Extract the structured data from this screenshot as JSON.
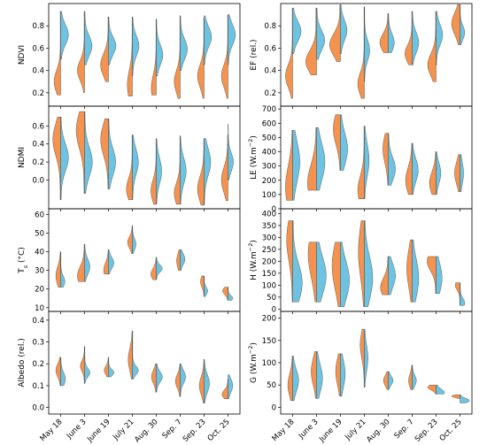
{
  "colors": {
    "left": "#F4934F",
    "right": "#6EC3E2"
  },
  "dates": [
    "May 18",
    "June 3",
    "June 19",
    "July 21",
    "Aug. 30",
    "Sep. 7",
    "Sep. 23",
    "Oct. 25"
  ],
  "chart_data": [
    {
      "type": "split-violin",
      "panel": "NDVI",
      "col": 0,
      "row": 0,
      "ylabel_parts": [
        {
          "t": "NDVI"
        }
      ],
      "yticks": [
        0.2,
        0.4,
        0.6,
        0.8
      ],
      "ylim": [
        0.08,
        1.0
      ],
      "left": [
        [
          0.93,
          0.18,
          0.3,
          0.55,
          0.1
        ],
        [
          0.93,
          0.2,
          0.4,
          0.6,
          0.09
        ],
        [
          0.88,
          0.3,
          0.45,
          0.66,
          0.1
        ],
        [
          0.88,
          0.17,
          0.27,
          0.42,
          0.13
        ],
        [
          0.86,
          0.18,
          0.24,
          0.42,
          0.12
        ],
        [
          0.89,
          0.15,
          0.3,
          0.5,
          0.1
        ],
        [
          0.87,
          0.15,
          0.35,
          0.55,
          0.1
        ],
        [
          0.9,
          0.15,
          0.35,
          0.55,
          0.1
        ]
      ],
      "right": [
        [
          0.93,
          0.5,
          0.72,
          0.65,
          0.09
        ],
        [
          0.93,
          0.45,
          0.62,
          0.62,
          0.09
        ],
        [
          0.88,
          0.45,
          0.62,
          0.62,
          0.08
        ],
        [
          0.88,
          0.35,
          0.62,
          0.55,
          0.09
        ],
        [
          0.86,
          0.35,
          0.54,
          0.55,
          0.09
        ],
        [
          0.89,
          0.4,
          0.59,
          0.6,
          0.09
        ],
        [
          0.89,
          0.45,
          0.7,
          0.62,
          0.09
        ],
        [
          0.9,
          0.45,
          0.72,
          0.62,
          0.09
        ]
      ]
    },
    {
      "type": "split-violin",
      "panel": "EF",
      "col": 1,
      "row": 0,
      "ylabel_parts": [
        {
          "t": "EF (rel.)"
        }
      ],
      "yticks": [
        0.2,
        0.4,
        0.6,
        0.8
      ],
      "ylim": [
        0.08,
        1.0
      ],
      "left": [
        [
          0.96,
          0.15,
          0.35,
          0.6,
          0.1
        ],
        [
          0.96,
          0.36,
          0.48,
          0.9,
          0.1
        ],
        [
          0.99,
          0.48,
          0.63,
          0.9,
          0.1
        ],
        [
          0.97,
          0.15,
          0.28,
          0.55,
          0.1
        ],
        [
          0.91,
          0.56,
          0.65,
          0.7,
          0.08
        ],
        [
          0.93,
          0.45,
          0.55,
          0.6,
          0.08
        ],
        [
          0.93,
          0.3,
          0.45,
          0.7,
          0.1
        ],
        [
          0.99,
          0.63,
          0.82,
          0.7,
          0.1
        ]
      ],
      "right": [
        [
          0.96,
          0.55,
          0.75,
          0.7,
          0.09
        ],
        [
          0.96,
          0.5,
          0.67,
          0.68,
          0.09
        ],
        [
          0.99,
          0.55,
          0.76,
          0.55,
          0.09
        ],
        [
          0.97,
          0.3,
          0.58,
          0.45,
          0.09
        ],
        [
          0.91,
          0.56,
          0.65,
          0.5,
          0.08
        ],
        [
          0.93,
          0.45,
          0.65,
          0.55,
          0.09
        ],
        [
          0.93,
          0.45,
          0.72,
          0.55,
          0.09
        ],
        [
          0.99,
          0.63,
          0.74,
          0.4,
          0.06
        ]
      ]
    },
    {
      "type": "split-violin",
      "panel": "NDMI",
      "col": 0,
      "row": 1,
      "ylabel_parts": [
        {
          "t": "NDMI"
        }
      ],
      "yticks": [
        0.0,
        0.2,
        0.4,
        0.6
      ],
      "ylim": [
        -0.32,
        0.82
      ],
      "left": [
        [
          0.7,
          -0.22,
          0.45,
          0.65,
          0.18
        ],
        [
          0.76,
          -0.15,
          0.55,
          0.7,
          0.2
        ],
        [
          0.68,
          -0.1,
          0.45,
          0.65,
          0.18
        ],
        [
          0.5,
          -0.22,
          -0.1,
          0.5,
          0.12
        ],
        [
          0.46,
          -0.27,
          -0.12,
          0.45,
          0.12
        ],
        [
          0.49,
          -0.27,
          -0.15,
          0.5,
          0.12
        ],
        [
          0.46,
          -0.28,
          -0.1,
          0.55,
          0.14
        ],
        [
          0.5,
          -0.23,
          0.0,
          0.55,
          0.14
        ]
      ],
      "right": [
        [
          0.7,
          -0.22,
          0.25,
          0.65,
          0.15
        ],
        [
          0.76,
          -0.15,
          0.2,
          0.65,
          0.16
        ],
        [
          0.68,
          -0.1,
          0.2,
          0.6,
          0.15
        ],
        [
          0.5,
          -0.22,
          0.2,
          0.5,
          0.14
        ],
        [
          0.46,
          -0.27,
          0.1,
          0.45,
          0.14
        ],
        [
          0.49,
          -0.27,
          0.1,
          0.5,
          0.14
        ],
        [
          0.46,
          -0.28,
          0.2,
          0.55,
          0.15
        ],
        [
          0.62,
          0.0,
          0.2,
          0.45,
          0.1
        ]
      ]
    },
    {
      "type": "split-violin",
      "panel": "LE",
      "col": 1,
      "row": 1,
      "ylabel_parts": [
        {
          "t": "LE (W.m"
        },
        {
          "t": "−2",
          "sup": true
        },
        {
          "t": ")"
        }
      ],
      "yticks": [
        0,
        100,
        200,
        300,
        400,
        500,
        600,
        700
      ],
      "ylim": [
        0,
        720
      ],
      "left": [
        [
          550,
          60,
          150,
          0.6,
          150
        ],
        [
          570,
          130,
          180,
          0.75,
          130
        ],
        [
          660,
          270,
          560,
          0.6,
          110
        ],
        [
          580,
          70,
          130,
          0.55,
          100
        ],
        [
          530,
          165,
          420,
          0.45,
          100
        ],
        [
          460,
          100,
          200,
          0.55,
          90
        ],
        [
          400,
          100,
          180,
          0.55,
          80
        ],
        [
          380,
          120,
          250,
          0.45,
          80
        ]
      ],
      "right": [
        [
          550,
          60,
          330,
          0.6,
          140
        ],
        [
          570,
          130,
          330,
          0.7,
          130
        ],
        [
          660,
          270,
          420,
          0.6,
          110
        ],
        [
          580,
          70,
          340,
          0.4,
          110
        ],
        [
          530,
          165,
          280,
          0.6,
          80
        ],
        [
          460,
          100,
          270,
          0.5,
          80
        ],
        [
          400,
          100,
          250,
          0.4,
          70
        ],
        [
          380,
          120,
          250,
          0.3,
          80
        ]
      ]
    },
    {
      "type": "split-violin",
      "panel": "Ts",
      "col": 0,
      "row": 2,
      "ylabel_parts": [
        {
          "t": "T"
        },
        {
          "t": "s",
          "sub": true
        },
        {
          "t": " (°C)"
        }
      ],
      "yticks": [
        10,
        20,
        30,
        40,
        50,
        60
      ],
      "ylim": [
        8,
        63
      ],
      "left": [
        [
          40,
          21,
          27,
          0.4,
          5
        ],
        [
          44,
          24,
          27,
          0.6,
          5
        ],
        [
          41,
          28,
          30,
          0.4,
          4
        ],
        [
          54,
          39,
          45,
          0.4,
          3
        ],
        [
          37,
          25,
          28,
          0.45,
          3
        ],
        [
          41,
          30,
          35,
          0.3,
          4
        ],
        [
          27,
          16,
          24,
          0.3,
          3
        ],
        [
          21,
          14,
          19,
          0.45,
          2
        ]
      ],
      "right": [
        [
          40,
          21,
          24,
          0.35,
          3
        ],
        [
          44,
          24,
          32,
          0.45,
          4
        ],
        [
          41,
          28,
          34,
          0.45,
          3
        ],
        [
          54,
          39,
          44,
          0.3,
          3
        ],
        [
          37,
          25,
          31,
          0.5,
          2
        ],
        [
          41,
          30,
          36,
          0.4,
          3
        ],
        [
          27,
          16,
          19,
          0.3,
          2
        ],
        [
          21,
          14,
          15,
          0.4,
          1.5
        ]
      ]
    },
    {
      "type": "split-violin",
      "panel": "H",
      "col": 1,
      "row": 2,
      "ylabel_parts": [
        {
          "t": "H (W.m"
        },
        {
          "t": "−2",
          "sup": true
        },
        {
          "t": ")"
        }
      ],
      "yticks": [
        0,
        50,
        100,
        150,
        200,
        250,
        300,
        350,
        400
      ],
      "ylim": [
        -10,
        420
      ],
      "left": [
        [
          370,
          30,
          290,
          0.5,
          90
        ],
        [
          280,
          30,
          230,
          0.7,
          100
        ],
        [
          280,
          10,
          180,
          0.7,
          100
        ],
        [
          370,
          10,
          240,
          0.5,
          110
        ],
        [
          220,
          60,
          90,
          0.65,
          40
        ],
        [
          290,
          30,
          170,
          0.45,
          80
        ],
        [
          220,
          65,
          200,
          0.75,
          40
        ],
        [
          110,
          15,
          100,
          0.4,
          20
        ]
      ],
      "right": [
        [
          370,
          30,
          110,
          0.8,
          80
        ],
        [
          280,
          30,
          140,
          0.8,
          80
        ],
        [
          280,
          10,
          120,
          0.75,
          80
        ],
        [
          370,
          10,
          130,
          0.7,
          90
        ],
        [
          220,
          60,
          140,
          0.6,
          50
        ],
        [
          290,
          30,
          130,
          0.55,
          80
        ],
        [
          220,
          65,
          130,
          0.5,
          60
        ],
        [
          110,
          15,
          25,
          0.4,
          20
        ]
      ]
    },
    {
      "type": "split-violin",
      "panel": "Albedo",
      "col": 0,
      "row": 3,
      "ylabel_parts": [
        {
          "t": "Albedo (rel.)"
        }
      ],
      "yticks": [
        0.0,
        0.1,
        0.2,
        0.3,
        0.4
      ],
      "ylim": [
        -0.03,
        0.44
      ],
      "left": [
        [
          0.23,
          0.1,
          0.17,
          0.4,
          0.03
        ],
        [
          0.28,
          0.11,
          0.19,
          0.35,
          0.025
        ],
        [
          0.23,
          0.14,
          0.17,
          0.35,
          0.02
        ],
        [
          0.35,
          0.13,
          0.22,
          0.35,
          0.05
        ],
        [
          0.2,
          0.07,
          0.14,
          0.4,
          0.03
        ],
        [
          0.2,
          0.05,
          0.12,
          0.4,
          0.03
        ],
        [
          0.22,
          0.02,
          0.1,
          0.4,
          0.04
        ],
        [
          0.13,
          0.04,
          0.06,
          0.5,
          0.02
        ]
      ],
      "right": [
        [
          0.23,
          0.1,
          0.13,
          0.4,
          0.03
        ],
        [
          0.28,
          0.11,
          0.16,
          0.45,
          0.02
        ],
        [
          0.23,
          0.14,
          0.16,
          0.45,
          0.015
        ],
        [
          0.35,
          0.13,
          0.17,
          0.5,
          0.02
        ],
        [
          0.2,
          0.07,
          0.14,
          0.5,
          0.025
        ],
        [
          0.2,
          0.05,
          0.14,
          0.45,
          0.03
        ],
        [
          0.22,
          0.02,
          0.11,
          0.45,
          0.04
        ],
        [
          0.15,
          0.04,
          0.1,
          0.4,
          0.03
        ]
      ]
    },
    {
      "type": "split-violin",
      "panel": "G",
      "col": 1,
      "row": 3,
      "ylabel_parts": [
        {
          "t": "G (W.m"
        },
        {
          "t": "−2",
          "sup": true
        },
        {
          "t": ")"
        }
      ],
      "yticks": [
        0,
        50,
        100,
        150,
        200
      ],
      "ylim": [
        -15,
        215
      ],
      "left": [
        [
          115,
          15,
          50,
          0.4,
          25
        ],
        [
          125,
          20,
          80,
          0.45,
          30
        ],
        [
          120,
          25,
          80,
          0.4,
          30
        ],
        [
          175,
          45,
          140,
          0.35,
          30
        ],
        [
          80,
          40,
          60,
          0.4,
          12
        ],
        [
          95,
          40,
          60,
          0.3,
          15
        ],
        [
          50,
          30,
          45,
          0.7,
          6
        ],
        [
          28,
          20,
          25,
          0.7,
          3
        ]
      ],
      "right": [
        [
          115,
          15,
          60,
          0.5,
          25
        ],
        [
          125,
          20,
          65,
          0.5,
          30
        ],
        [
          120,
          25,
          75,
          0.4,
          30
        ],
        [
          175,
          45,
          110,
          0.3,
          30
        ],
        [
          80,
          40,
          60,
          0.4,
          10
        ],
        [
          95,
          40,
          60,
          0.35,
          12
        ],
        [
          50,
          30,
          33,
          0.7,
          8
        ],
        [
          28,
          10,
          15,
          0.8,
          5
        ]
      ]
    }
  ]
}
